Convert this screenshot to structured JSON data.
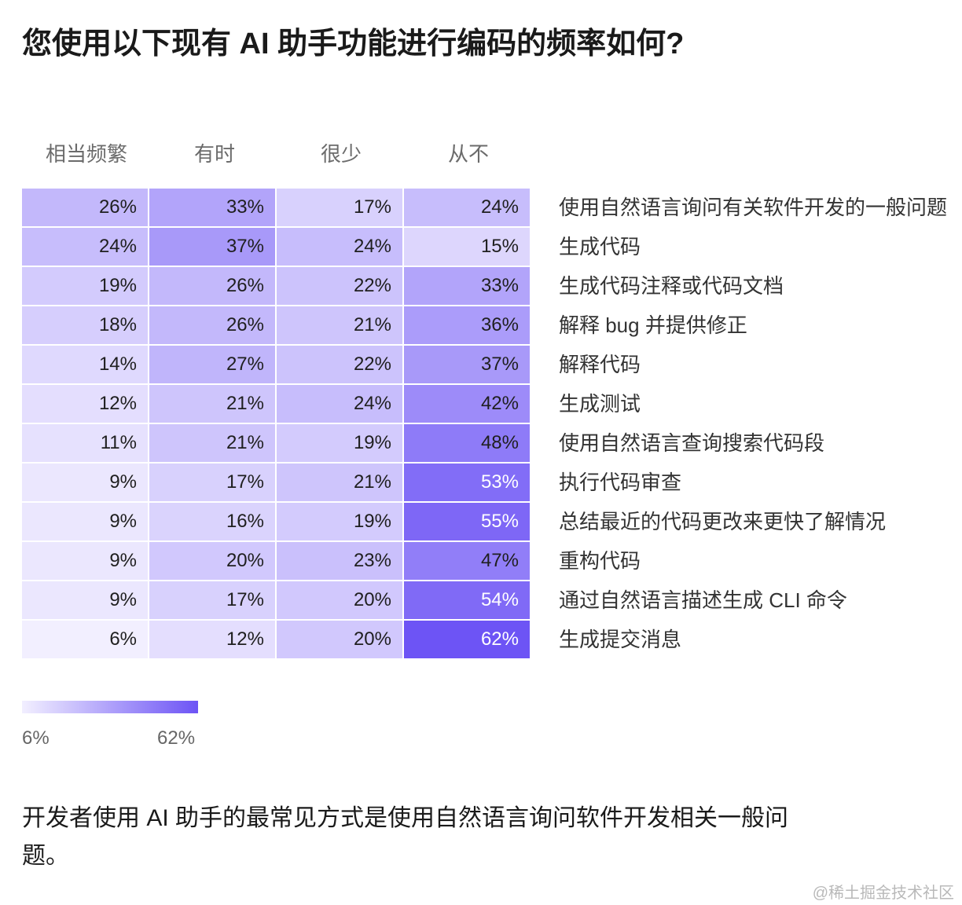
{
  "title": "您使用以下现有 AI 助手功能进行编码的频率如何?",
  "colors": {
    "low": "#f2efff",
    "high": "#6d54f5",
    "dark_text": "#1f1f1f",
    "light_text": "#ffffff"
  },
  "legend": {
    "min_label": "6%",
    "max_label": "62%"
  },
  "takeaway": "开发者使用 AI 助手的最常见方式是使用自然语言询问软件开发相关一般问题。",
  "watermark": "@稀土掘金技术社区",
  "chart_data": {
    "type": "heatmap",
    "columns": [
      "相当频繁",
      "有时",
      "很少",
      "从不"
    ],
    "rows": [
      "使用自然语言询问有关软件开发的一般问题",
      "生成代码",
      "生成代码注释或代码文档",
      "解释 bug 并提供修正",
      "解释代码",
      "生成测试",
      "使用自然语言查询搜索代码段",
      "执行代码审查",
      "总结最近的代码更改来更快了解情况",
      "重构代码",
      "通过自然语言描述生成 CLI 命令",
      "生成提交消息"
    ],
    "values": [
      [
        26,
        33,
        17,
        24
      ],
      [
        24,
        37,
        24,
        15
      ],
      [
        19,
        26,
        22,
        33
      ],
      [
        18,
        26,
        21,
        36
      ],
      [
        14,
        27,
        22,
        37
      ],
      [
        12,
        21,
        24,
        42
      ],
      [
        11,
        21,
        19,
        48
      ],
      [
        9,
        17,
        21,
        53
      ],
      [
        9,
        16,
        19,
        55
      ],
      [
        9,
        20,
        23,
        47
      ],
      [
        9,
        17,
        20,
        54
      ],
      [
        6,
        12,
        20,
        62
      ]
    ],
    "unit": "%",
    "scale": {
      "min": 6,
      "max": 62
    }
  }
}
